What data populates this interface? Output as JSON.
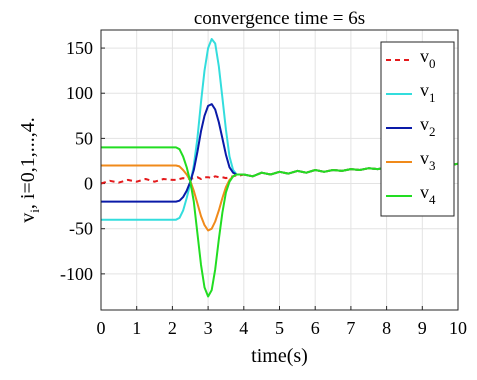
{
  "chart_data": {
    "type": "line",
    "title": "convergence time = 6s",
    "xlabel": "time(s)",
    "ylabel_parts": {
      "v": "v",
      "sub": "i",
      "rest": ", i=0,1,...,4."
    },
    "xlim": [
      0,
      10
    ],
    "ylim": [
      -140,
      170
    ],
    "xticks": [
      0,
      1,
      2,
      3,
      4,
      5,
      6,
      7,
      8,
      9,
      10
    ],
    "yticks": [
      -100,
      -50,
      0,
      50,
      100,
      150
    ],
    "grid": true,
    "legend_position": "top-right",
    "x": [
      0,
      0.25,
      0.5,
      0.75,
      1,
      1.25,
      1.5,
      1.75,
      2,
      2.1,
      2.2,
      2.3,
      2.4,
      2.5,
      2.6,
      2.7,
      2.8,
      2.9,
      3.0,
      3.1,
      3.2,
      3.3,
      3.4,
      3.5,
      3.6,
      3.7,
      3.8,
      3.9,
      4.0,
      4.25,
      4.5,
      4.75,
      5,
      5.25,
      5.5,
      5.75,
      6,
      6.25,
      6.5,
      6.75,
      7,
      7.25,
      7.5,
      7.75,
      8,
      8.25,
      8.5,
      8.75,
      9,
      9.25,
      9.5,
      9.75,
      10
    ],
    "series": [
      {
        "name": "v",
        "sub": "0",
        "color": "#e41a1c",
        "dash": "5,4",
        "values": [
          0,
          3,
          1,
          4,
          2,
          5,
          2,
          5,
          4,
          4,
          5,
          6,
          5,
          5,
          6,
          7,
          5,
          7,
          7,
          6,
          8,
          7,
          7,
          6,
          7,
          8,
          9,
          9,
          10,
          8,
          12,
          10,
          13,
          11,
          14,
          12,
          15,
          13,
          15,
          14,
          16,
          15,
          17,
          16,
          18,
          17,
          19,
          18,
          20,
          19,
          21,
          20,
          22
        ]
      },
      {
        "name": "v",
        "sub": "1",
        "color": "#33dddd",
        "dash": "",
        "values": [
          -40,
          -40,
          -40,
          -40,
          -40,
          -40,
          -40,
          -40,
          -40,
          -40,
          -38,
          -30,
          -16,
          0,
          20,
          50,
          90,
          125,
          150,
          160,
          155,
          130,
          95,
          60,
          30,
          15,
          10,
          10,
          10,
          8,
          12,
          10,
          13,
          11,
          14,
          12,
          15,
          13,
          15,
          14,
          16,
          15,
          17,
          16,
          18,
          17,
          19,
          18,
          20,
          19,
          21,
          20,
          22
        ]
      },
      {
        "name": "v",
        "sub": "2",
        "color": "#0a1aa8",
        "dash": "",
        "values": [
          -20,
          -20,
          -20,
          -20,
          -20,
          -20,
          -20,
          -20,
          -20,
          -20,
          -19,
          -15,
          -8,
          2,
          15,
          35,
          58,
          75,
          86,
          88,
          82,
          68,
          50,
          32,
          18,
          12,
          10,
          10,
          10,
          8,
          12,
          10,
          13,
          11,
          14,
          12,
          15,
          13,
          15,
          14,
          16,
          15,
          17,
          16,
          18,
          17,
          19,
          18,
          20,
          19,
          21,
          20,
          22
        ]
      },
      {
        "name": "v",
        "sub": "3",
        "color": "#f08a1a",
        "dash": "",
        "values": [
          20,
          20,
          20,
          20,
          20,
          20,
          20,
          20,
          20,
          20,
          19,
          15,
          10,
          3,
          -8,
          -22,
          -36,
          -46,
          -52,
          -50,
          -42,
          -30,
          -16,
          -4,
          4,
          8,
          10,
          10,
          10,
          8,
          12,
          10,
          13,
          11,
          14,
          12,
          15,
          13,
          15,
          14,
          16,
          15,
          17,
          16,
          18,
          17,
          19,
          18,
          20,
          19,
          21,
          20,
          22
        ]
      },
      {
        "name": "v",
        "sub": "4",
        "color": "#22dd22",
        "dash": "",
        "values": [
          40,
          40,
          40,
          40,
          40,
          40,
          40,
          40,
          40,
          40,
          38,
          30,
          18,
          2,
          -20,
          -55,
          -90,
          -115,
          -125,
          -118,
          -95,
          -62,
          -32,
          -10,
          2,
          8,
          10,
          10,
          10,
          8,
          12,
          10,
          13,
          11,
          14,
          12,
          15,
          13,
          15,
          14,
          16,
          15,
          17,
          16,
          18,
          17,
          19,
          18,
          20,
          19,
          21,
          20,
          22
        ]
      }
    ]
  }
}
